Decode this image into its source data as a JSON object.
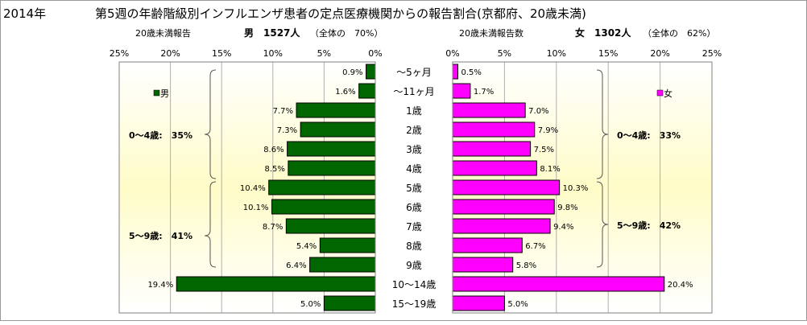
{
  "chart_data": {
    "type": "bar",
    "year_label": "2014年",
    "title": "第5週の年齢階級別インフルエンザ患者の定点医療機関からの報告割合(京都府、20歳未満)",
    "categories": [
      "～5ヶ月",
      "～11ヶ月",
      "1歳",
      "2歳",
      "3歳",
      "4歳",
      "5歳",
      "6歳",
      "7歳",
      "8歳",
      "9歳",
      "10～14歳",
      "15～19歳"
    ],
    "series": [
      {
        "name": "男",
        "header_prefix": "20歳未満報告",
        "header_main": "男　1527人",
        "header_suffix": "（全体の　70%）",
        "values": [
          0.9,
          1.6,
          7.7,
          7.3,
          8.6,
          8.5,
          10.4,
          10.1,
          8.7,
          5.4,
          6.4,
          19.4,
          5.0
        ],
        "labels": [
          "0.9%",
          "1.6%",
          "7.7%",
          "7.3%",
          "8.6%",
          "8.5%",
          "10.4%",
          "10.1%",
          "8.7%",
          "5.4%",
          "6.4%",
          "19.4%",
          "5.0%"
        ],
        "color": "#006600",
        "legend": "男",
        "groups": [
          "0～4歳:　35%",
          "5～9歳:　41%"
        ]
      },
      {
        "name": "女",
        "header_prefix": "20歳未満報告数",
        "header_main": "女　1302人",
        "header_suffix": "（全体の　62%）",
        "values": [
          0.5,
          1.7,
          7.0,
          7.9,
          7.5,
          8.1,
          10.3,
          9.8,
          9.4,
          6.7,
          5.8,
          20.4,
          5.0
        ],
        "labels": [
          "0.5%",
          "1.7%",
          "7.0%",
          "7.9%",
          "7.5%",
          "8.1%",
          "10.3%",
          "9.8%",
          "9.4%",
          "6.7%",
          "5.8%",
          "20.4%",
          "5.0%"
        ],
        "color": "#ff00ff",
        "legend": "女",
        "groups": [
          "0～4歳:　33%",
          "5～9歳:　42%"
        ]
      }
    ],
    "left_ticks": [
      "25%",
      "20%",
      "15%",
      "10%",
      "5%",
      "0%"
    ],
    "right_ticks": [
      "0%",
      "5%",
      "10%",
      "15%",
      "20%",
      "25%"
    ],
    "xlim": [
      0,
      25
    ],
    "grid": true,
    "legend_position": "top-inside",
    "background_gradient": [
      "#fffcc8",
      "#ffffff"
    ]
  }
}
